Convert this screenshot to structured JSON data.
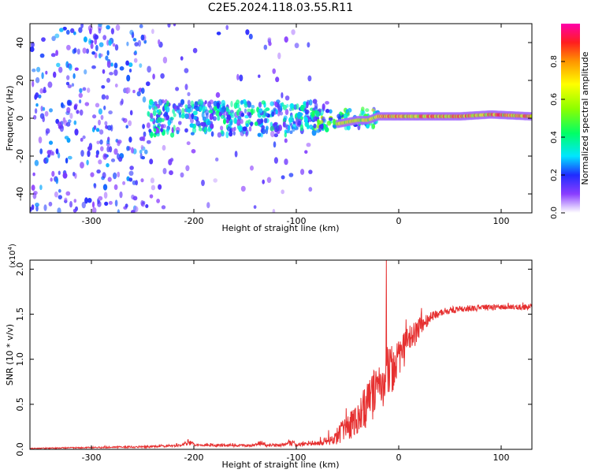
{
  "page_title": "C2E5.2024.118.03.55.R11",
  "colors": {
    "snr_line": "#e63030",
    "axis": "#000000",
    "scatter_light": "#d9b8ff",
    "scatter_mid": "#8a3dff",
    "scatter_dark": "#5a00e0"
  },
  "chart_data": [
    {
      "type": "heatmap",
      "title": "C2E5.2024.118.03.55.R11",
      "xlabel": "Height of straight line (km)",
      "ylabel": "Frequency (Hz)",
      "xlim": [
        -360,
        130
      ],
      "ylim": [
        -50,
        50
      ],
      "xticks": [
        -300,
        -200,
        -100,
        0,
        100
      ],
      "xtick_labels": [
        "-300",
        "-200",
        "-100",
        "0",
        "100"
      ],
      "yticks": [
        -40,
        -20,
        0,
        20,
        40
      ],
      "ytick_labels": [
        "-40",
        "-20",
        "0",
        "20",
        "40"
      ],
      "colorbar": {
        "label": "Normalized spectral amplitude",
        "range": [
          0,
          1
        ],
        "ticks": [
          0,
          0.2,
          0.4,
          0.6,
          0.8
        ],
        "tick_labels": [
          "0.0",
          "0.2",
          "0.4",
          "0.6",
          "0.8"
        ]
      },
      "regions": [
        {
          "x_range": [
            -360,
            -245
          ],
          "freq_spread": 50,
          "density": "dense",
          "intensity": 0.2
        },
        {
          "x_range": [
            -245,
            -85
          ],
          "freq_spread": 50,
          "density": "sparse",
          "intensity": 0.15
        },
        {
          "x_range": [
            -245,
            -70
          ],
          "freq_spread": 9,
          "density": "dense",
          "intensity": 0.3
        },
        {
          "x_range": [
            -85,
            -20
          ],
          "freq_spread": 5,
          "density": "dense",
          "intensity": 0.45
        }
      ],
      "carrier": {
        "x_range": [
          -60,
          130
        ],
        "freq_hz": 1,
        "points": [
          [
            -60,
            -3
          ],
          [
            -50,
            -2
          ],
          [
            -40,
            -1
          ],
          [
            -30,
            -1
          ],
          [
            -20,
            1
          ],
          [
            0,
            1
          ],
          [
            30,
            1
          ],
          [
            60,
            1
          ],
          [
            90,
            2
          ],
          [
            130,
            1
          ]
        ]
      }
    },
    {
      "type": "line",
      "xlabel": "Height of straight line (km)",
      "ylabel": "SNR (10 * v/v)",
      "y_scale_label": "(x10",
      "y_scale_exponent": "4",
      "y_scale_suffix": ")",
      "xlim": [
        -360,
        130
      ],
      "ylim": [
        0,
        2.1
      ],
      "xticks": [
        -300,
        -200,
        -100,
        0,
        100
      ],
      "xtick_labels": [
        "-300",
        "-200",
        "-100",
        "0",
        "100"
      ],
      "yticks": [
        0,
        0.5,
        1.0,
        1.5,
        2.0
      ],
      "ytick_labels": [
        "0.0",
        "0.5",
        "1.0",
        "1.5",
        "2.0"
      ],
      "series": [
        {
          "name": "SNR",
          "envelope_x": [
            -360,
            -240,
            -200,
            -150,
            -100,
            -75,
            -60,
            -45,
            -30,
            -20,
            -10,
            0,
            10,
            20,
            30,
            40,
            60,
            80,
            100,
            130
          ],
          "envelope_y": [
            0.01,
            0.03,
            0.05,
            0.04,
            0.05,
            0.07,
            0.15,
            0.3,
            0.5,
            0.7,
            0.85,
            1.0,
            1.2,
            1.35,
            1.45,
            1.52,
            1.56,
            1.57,
            1.58,
            1.58
          ],
          "noise_x": [
            -360,
            -80,
            -60,
            -40,
            -20,
            -10,
            0,
            10,
            25,
            40,
            130
          ],
          "noise_y": [
            0.005,
            0.02,
            0.1,
            0.2,
            0.3,
            0.32,
            0.22,
            0.18,
            0.08,
            0.04,
            0.03
          ],
          "bumps_x": [
            -205,
            -135,
            -105
          ],
          "bumps_y": [
            0.06,
            0.05,
            0.06
          ],
          "spike_x": -12,
          "spike_y": 2.1
        }
      ]
    }
  ]
}
